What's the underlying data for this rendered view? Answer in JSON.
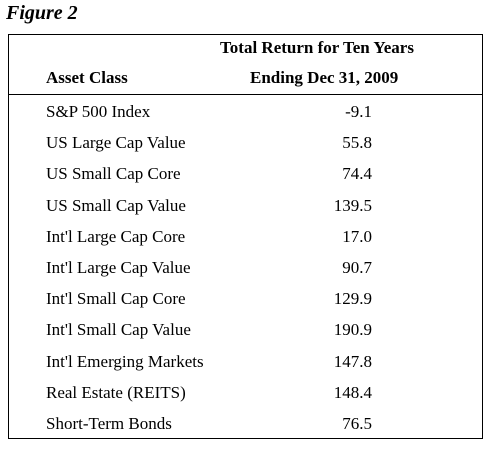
{
  "figure_title": "Figure 2",
  "table": {
    "header": {
      "label": "Asset Class",
      "value_line1": "Total Return for Ten Years",
      "value_line2": "Ending Dec 31, 2009"
    },
    "rows": [
      [
        "S&P 500 Index",
        "-9.1"
      ],
      [
        "US Large Cap Value",
        "55.8"
      ],
      [
        "US Small Cap Core",
        "74.4"
      ],
      [
        "US Small Cap Value",
        "139.5"
      ],
      [
        "Int'l Large Cap Core",
        "17.0"
      ],
      [
        "Int'l Large Cap Value",
        "90.7"
      ],
      [
        "Int'l Small Cap Core",
        "129.9"
      ],
      [
        "Int'l Small Cap Value",
        "190.9"
      ],
      [
        "Int'l Emerging Markets",
        "147.8"
      ],
      [
        "Real Estate (REITS)",
        "148.4"
      ],
      [
        "Short-Term Bonds",
        "76.5"
      ]
    ]
  }
}
